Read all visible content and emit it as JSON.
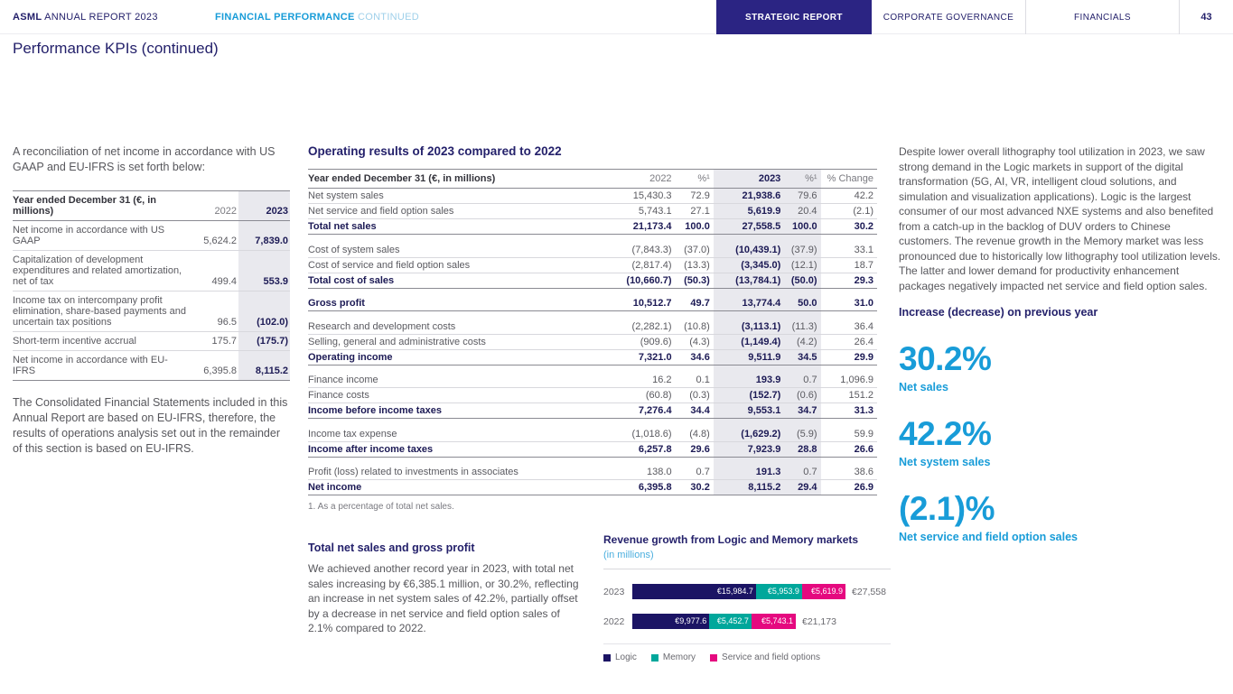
{
  "colors": {
    "navy": "#24216b",
    "tab_navy": "#2b2483",
    "cyan": "#189cd8",
    "light_cyan": "#9fd0ea",
    "highlight_band": "#e9e9ee",
    "logic_navy": "#1b1464",
    "memory_teal": "#00a79b",
    "service_magenta": "#e5097f"
  },
  "header": {
    "brand_bold": "ASML",
    "brand_rest": " ANNUAL REPORT 2023",
    "section_bold": "FINANCIAL PERFORMANCE",
    "section_rest": " CONTINUED",
    "tabs": [
      {
        "label": "STRATEGIC REPORT",
        "active": true
      },
      {
        "label": "CORPORATE GOVERNANCE",
        "active": false
      },
      {
        "label": "FINANCIALS",
        "active": false
      }
    ],
    "page_number": "43"
  },
  "page_title": "Performance KPIs (continued)",
  "left": {
    "intro": "A reconciliation of net income in accordance with US GAAP and EU-IFRS is set forth below:",
    "table": {
      "columns": [
        "Year ended December 31 (€, in millions)",
        "2022",
        "2023"
      ],
      "rows": [
        {
          "label": "Net income in accordance with US GAAP",
          "v2022": "5,624.2",
          "v2023": "7,839.0"
        },
        {
          "label": "Capitalization of development expenditures and related amortization, net of tax",
          "v2022": "499.4",
          "v2023": "553.9"
        },
        {
          "label": "Income tax on intercompany profit elimination, share-based payments and uncertain tax positions",
          "v2022": "96.5",
          "v2023": "(102.0)"
        },
        {
          "label": "Short-term incentive accrual",
          "v2022": "175.7",
          "v2023": "(175.7)"
        },
        {
          "label": "Net income in accordance with EU-IFRS",
          "v2022": "6,395.8",
          "v2023": "8,115.2"
        }
      ]
    },
    "outro": "The Consolidated Financial Statements included in this Annual Report are based on EU-IFRS, therefore, the results of operations analysis set out in the remainder of this section is based on EU-IFRS."
  },
  "middle": {
    "heading": "Operating results of 2023 compared to 2022",
    "table": {
      "columns": [
        "Year ended December 31 (€, in millions)",
        "2022",
        "%¹",
        "2023",
        "%¹",
        "% Change"
      ],
      "rows": [
        {
          "label": "Net system sales",
          "v2022": "15,430.3",
          "p2022": "72.9",
          "v2023": "21,938.6",
          "p2023": "79.6",
          "change": "42.2",
          "bold": false,
          "gap_after": false
        },
        {
          "label": "Net service and field option sales",
          "v2022": "5,743.1",
          "p2022": "27.1",
          "v2023": "5,619.9",
          "p2023": "20.4",
          "change": "(2.1)",
          "bold": false,
          "gap_after": false
        },
        {
          "label": "Total net sales",
          "v2022": "21,173.4",
          "p2022": "100.0",
          "v2023": "27,558.5",
          "p2023": "100.0",
          "change": "30.2",
          "bold": true,
          "gap_after": true
        },
        {
          "label": "Cost of system sales",
          "v2022": "(7,843.3)",
          "p2022": "(37.0)",
          "v2023": "(10,439.1)",
          "p2023": "(37.9)",
          "change": "33.1",
          "bold": false,
          "gap_after": false
        },
        {
          "label": "Cost of service and field option sales",
          "v2022": "(2,817.4)",
          "p2022": "(13.3)",
          "v2023": "(3,345.0)",
          "p2023": "(12.1)",
          "change": "18.7",
          "bold": false,
          "gap_after": false
        },
        {
          "label": "Total cost of sales",
          "v2022": "(10,660.7)",
          "p2022": "(50.3)",
          "v2023": "(13,784.1)",
          "p2023": "(50.0)",
          "change": "29.3",
          "bold": true,
          "gap_after": true
        },
        {
          "label": "Gross profit",
          "v2022": "10,512.7",
          "p2022": "49.7",
          "v2023": "13,774.4",
          "p2023": "50.0",
          "change": "31.0",
          "bold": true,
          "gap_after": true
        },
        {
          "label": "Research and development costs",
          "v2022": "(2,282.1)",
          "p2022": "(10.8)",
          "v2023": "(3,113.1)",
          "p2023": "(11.3)",
          "change": "36.4",
          "bold": false,
          "gap_after": false
        },
        {
          "label": "Selling, general and administrative costs",
          "v2022": "(909.6)",
          "p2022": "(4.3)",
          "v2023": "(1,149.4)",
          "p2023": "(4.2)",
          "change": "26.4",
          "bold": false,
          "gap_after": false
        },
        {
          "label": "Operating income",
          "v2022": "7,321.0",
          "p2022": "34.6",
          "v2023": "9,511.9",
          "p2023": "34.5",
          "change": "29.9",
          "bold": true,
          "gap_after": true
        },
        {
          "label": "Finance income",
          "v2022": "16.2",
          "p2022": "0.1",
          "v2023": "193.9",
          "p2023": "0.7",
          "change": "1,096.9",
          "bold": false,
          "gap_after": false
        },
        {
          "label": "Finance costs",
          "v2022": "(60.8)",
          "p2022": "(0.3)",
          "v2023": "(152.7)",
          "p2023": "(0.6)",
          "change": "151.2",
          "bold": false,
          "gap_after": false
        },
        {
          "label": "Income before income taxes",
          "v2022": "7,276.4",
          "p2022": "34.4",
          "v2023": "9,553.1",
          "p2023": "34.7",
          "change": "31.3",
          "bold": true,
          "gap_after": true
        },
        {
          "label": "Income tax expense",
          "v2022": "(1,018.6)",
          "p2022": "(4.8)",
          "v2023": "(1,629.2)",
          "p2023": "(5.9)",
          "change": "59.9",
          "bold": false,
          "gap_after": false
        },
        {
          "label": "Income after income taxes",
          "v2022": "6,257.8",
          "p2022": "29.6",
          "v2023": "7,923.9",
          "p2023": "28.8",
          "change": "26.6",
          "bold": true,
          "gap_after": true
        },
        {
          "label": "Profit (loss) related to investments in associates",
          "v2022": "138.0",
          "p2022": "0.7",
          "v2023": "191.3",
          "p2023": "0.7",
          "change": "38.6",
          "bold": false,
          "gap_after": false
        },
        {
          "label": "Net income",
          "v2022": "6,395.8",
          "p2022": "30.2",
          "v2023": "8,115.2",
          "p2023": "29.4",
          "change": "26.9",
          "bold": true,
          "gap_after": false
        }
      ]
    },
    "footnote": "1. As a percentage of total net sales.",
    "subsection": {
      "heading": "Total net sales and gross profit",
      "body": "We achieved another record year in 2023, with total net sales increasing by €6,385.1 million, or 30.2%, reflecting an increase in net system sales of 42.2%, partially offset by a decrease in net service and field option sales of 2.1% compared to 2022."
    }
  },
  "chart_data": {
    "type": "bar",
    "orientation": "horizontal",
    "stacked": true,
    "title": "Revenue growth from Logic and Memory markets",
    "subtitle": "(in millions)",
    "categories": [
      "2023",
      "2022"
    ],
    "series": [
      {
        "name": "Logic",
        "color": "#1b1464",
        "values": [
          15984.7,
          9977.6
        ],
        "labels": [
          "€15,984.7",
          "€9,977.6"
        ]
      },
      {
        "name": "Memory",
        "color": "#00a79b",
        "values": [
          5953.9,
          5452.7
        ],
        "labels": [
          "€5,953.9",
          "€5,452.7"
        ]
      },
      {
        "name": "Service and field options",
        "color": "#e5097f",
        "values": [
          5619.9,
          5743.1
        ],
        "labels": [
          "€5,619.9",
          "€5,743.1"
        ]
      }
    ],
    "totals": [
      "€27,558",
      "€21,173"
    ],
    "legend_position": "bottom",
    "xlim": [
      0,
      27558.5
    ]
  },
  "right": {
    "body": "Despite lower overall lithography tool utilization in 2023, we saw strong demand in the Logic markets in support of the digital transformation (5G, AI, VR, intelligent cloud solutions, and simulation and visualization applications). Logic is the largest consumer of our most advanced NXE systems and also benefited from a catch-up in the backlog of DUV orders to Chinese customers. The revenue growth in the Memory market was less pronounced due to historically low lithography tool utilization levels. The latter and lower demand for productivity enhancement packages negatively impacted net service and field option sales.",
    "heading": "Increase (decrease) on previous year",
    "kpis": [
      {
        "value": "30.2%",
        "label": "Net sales"
      },
      {
        "value": "42.2%",
        "label": "Net system sales"
      },
      {
        "value": "(2.1)%",
        "label": "Net service and field option sales"
      }
    ]
  }
}
